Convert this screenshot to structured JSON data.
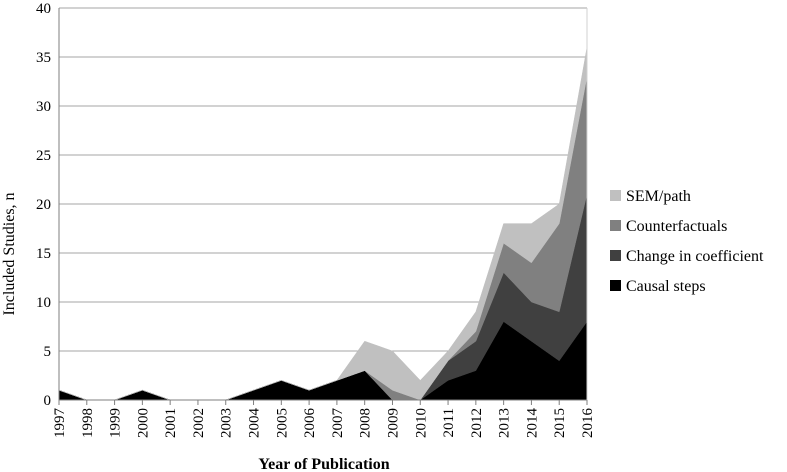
{
  "chart_data": {
    "type": "area",
    "stacked": true,
    "title": "",
    "xlabel": "Year of Publication",
    "ylabel": "Included Studies, n",
    "ylim": [
      0,
      40
    ],
    "yticks": [
      0,
      5,
      10,
      15,
      20,
      25,
      30,
      35,
      40
    ],
    "grid": true,
    "legend_position": "right",
    "categories": [
      "1997",
      "1998",
      "1999",
      "2000",
      "2001",
      "2002",
      "2003",
      "2004",
      "2005",
      "2006",
      "2007",
      "2008",
      "2009",
      "2010",
      "2011",
      "2012",
      "2013",
      "2014",
      "2015",
      "2016"
    ],
    "series": [
      {
        "name": "Causal steps",
        "color": "#000000",
        "values": [
          1,
          0,
          0,
          1,
          0,
          0,
          0,
          1,
          2,
          1,
          2,
          3,
          0,
          0,
          2,
          3,
          8,
          6,
          4,
          8
        ]
      },
      {
        "name": "Change in coefficient",
        "color": "#404040",
        "values": [
          0,
          0,
          0,
          0,
          0,
          0,
          0,
          0,
          0,
          0,
          0,
          0,
          0,
          0,
          2,
          3,
          5,
          4,
          5,
          13
        ]
      },
      {
        "name": "Counterfactuals",
        "color": "#808080",
        "values": [
          0,
          0,
          0,
          0,
          0,
          0,
          0,
          0,
          0,
          0,
          0,
          0,
          1,
          0,
          0,
          1,
          3,
          4,
          9,
          12
        ]
      },
      {
        "name": "SEM/path",
        "color": "#c0c0c0",
        "values": [
          0,
          0,
          0,
          0,
          0,
          0,
          0,
          0,
          0,
          0,
          0,
          3,
          4,
          2,
          1,
          2,
          2,
          4,
          2,
          3
        ]
      }
    ]
  }
}
